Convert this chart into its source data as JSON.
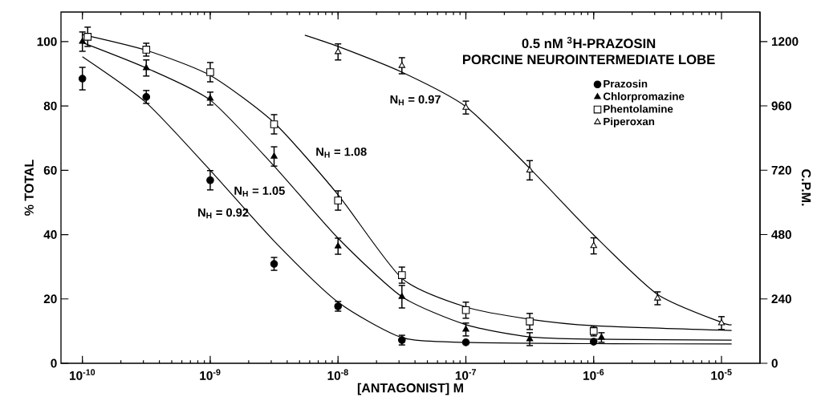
{
  "chart_data": {
    "type": "scatter",
    "title": "0.5 nM $^{3}$H-PRAZOSIN",
    "subtitle": "PORCINE NEUROINTERMEDIATE LOBE",
    "xlabel": "[ANTAGONIST] M",
    "ylabel": "% TOTAL",
    "y2label": "C.P.M.",
    "log": "x",
    "xlim": [
      6.8e-11,
      2e-05
    ],
    "ylim": [
      0,
      109.2
    ],
    "y2lim": [
      0,
      1310
    ],
    "xticks": [
      {
        "value": 1e-10,
        "label": "10$^{-10}$"
      },
      {
        "value": 1e-09,
        "label": "10$^{-9}$"
      },
      {
        "value": 1e-08,
        "label": "10$^{-8}$"
      },
      {
        "value": 1e-07,
        "label": "10$^{-7}$"
      },
      {
        "value": 1e-06,
        "label": "10$^{-6}$"
      },
      {
        "value": 1e-05,
        "label": "10$^{-5}$"
      }
    ],
    "yticks": [
      0,
      20,
      40,
      60,
      80,
      100
    ],
    "y2ticks": [
      0,
      240,
      480,
      720,
      960,
      1200
    ],
    "grid": false,
    "legend": "top right",
    "series": [
      {
        "name": "Prazosin",
        "color": "#000000",
        "marker": "circle",
        "x": [
          1e-10,
          3.16e-10,
          1e-09,
          3.16e-09,
          1e-08,
          3.16e-08,
          1e-07,
          1e-06
        ],
        "values": [
          88.5,
          82.8,
          56.9,
          30.9,
          17.7,
          7.2,
          6.5,
          6.7
        ],
        "errors": [
          3.5,
          2,
          3,
          2,
          1.5,
          1.5,
          null,
          null
        ]
      },
      {
        "name": "Chlorpromazine",
        "color": "#000000",
        "marker": "triangle",
        "x": [
          1e-10,
          3.16e-10,
          1e-09,
          3.16e-09,
          1e-08,
          3.16e-08,
          1e-07,
          3.16e-07,
          1.15e-06
        ],
        "values": [
          100,
          91.8,
          82.3,
          64.3,
          36.4,
          20.7,
          10.5,
          7.5,
          8
        ],
        "errors": [
          3,
          2.5,
          2,
          3,
          2.5,
          3.5,
          2,
          2,
          1.5
        ]
      },
      {
        "name": "Phentolamine",
        "color": "#ffffff",
        "marker": "square",
        "x": [
          1.1e-10,
          3.16e-10,
          1e-09,
          3.16e-09,
          1e-08,
          3.16e-08,
          1e-07,
          3.16e-07,
          1e-06
        ],
        "values": [
          101.5,
          97.5,
          90.5,
          74.3,
          50.6,
          27.4,
          16.5,
          13,
          10
        ],
        "errors": [
          3,
          2,
          3,
          3,
          3,
          2.5,
          2.5,
          2.5,
          1.5
        ]
      },
      {
        "name": "Piperoxan",
        "color": "#ffffff",
        "marker": "triangle",
        "x": [
          1e-08,
          3.16e-08,
          1e-07,
          3.16e-07,
          1e-06,
          3.16e-06,
          1e-05
        ],
        "values": [
          96.8,
          92.5,
          79.5,
          60,
          36.5,
          20.2,
          12.5
        ],
        "errors": [
          2.5,
          2.5,
          2,
          3,
          2.5,
          2,
          2
        ]
      },
      {
        "type": "line",
        "color": "#000000",
        "marker": "none",
        "x": [
          1e-10,
          3.16e-10,
          1e-09,
          3.16e-09,
          1e-08,
          3.16e-08,
          1e-07,
          1e-06,
          1.2e-05
        ],
        "values": [
          95.3,
          81,
          60,
          38,
          19,
          8,
          6.5,
          6.1,
          6.0
        ]
      },
      {
        "type": "line",
        "color": "#000000",
        "marker": "none",
        "x": [
          1e-10,
          3.16e-10,
          1e-09,
          3.16e-09,
          1e-08,
          3.16e-08,
          1e-07,
          3.16e-07,
          1e-06,
          1.2e-05
        ],
        "values": [
          99.7,
          91.8,
          81.8,
          61.3,
          38.9,
          20.7,
          12,
          8.2,
          7.5,
          7.2
        ]
      },
      {
        "type": "line",
        "color": "#000000",
        "marker": "none",
        "x": [
          1e-10,
          3.16e-10,
          1e-09,
          3.16e-09,
          1e-08,
          3.16e-08,
          1e-07,
          3.16e-07,
          1e-06,
          1.2e-05
        ],
        "values": [
          102.2,
          97.3,
          89.5,
          74.8,
          52.4,
          26.4,
          17.5,
          13.7,
          11.7,
          10.2
        ]
      },
      {
        "type": "line",
        "color": "#000000",
        "marker": "none",
        "x": [
          5.5e-09,
          1e-08,
          3.16e-08,
          1e-07,
          3.16e-07,
          1e-06,
          3.16e-06,
          1e-05,
          1.2e-05
        ],
        "values": [
          102,
          98.5,
          90.5,
          79.8,
          60.6,
          39.9,
          21.4,
          12.7,
          12
        ]
      }
    ],
    "annotations": [
      "N$_{H}$ = 0.92",
      "N$_{H}$ = 1.05",
      "N$_{H}$ = 1.08",
      "N$_{H}$ = 0.97"
    ]
  }
}
